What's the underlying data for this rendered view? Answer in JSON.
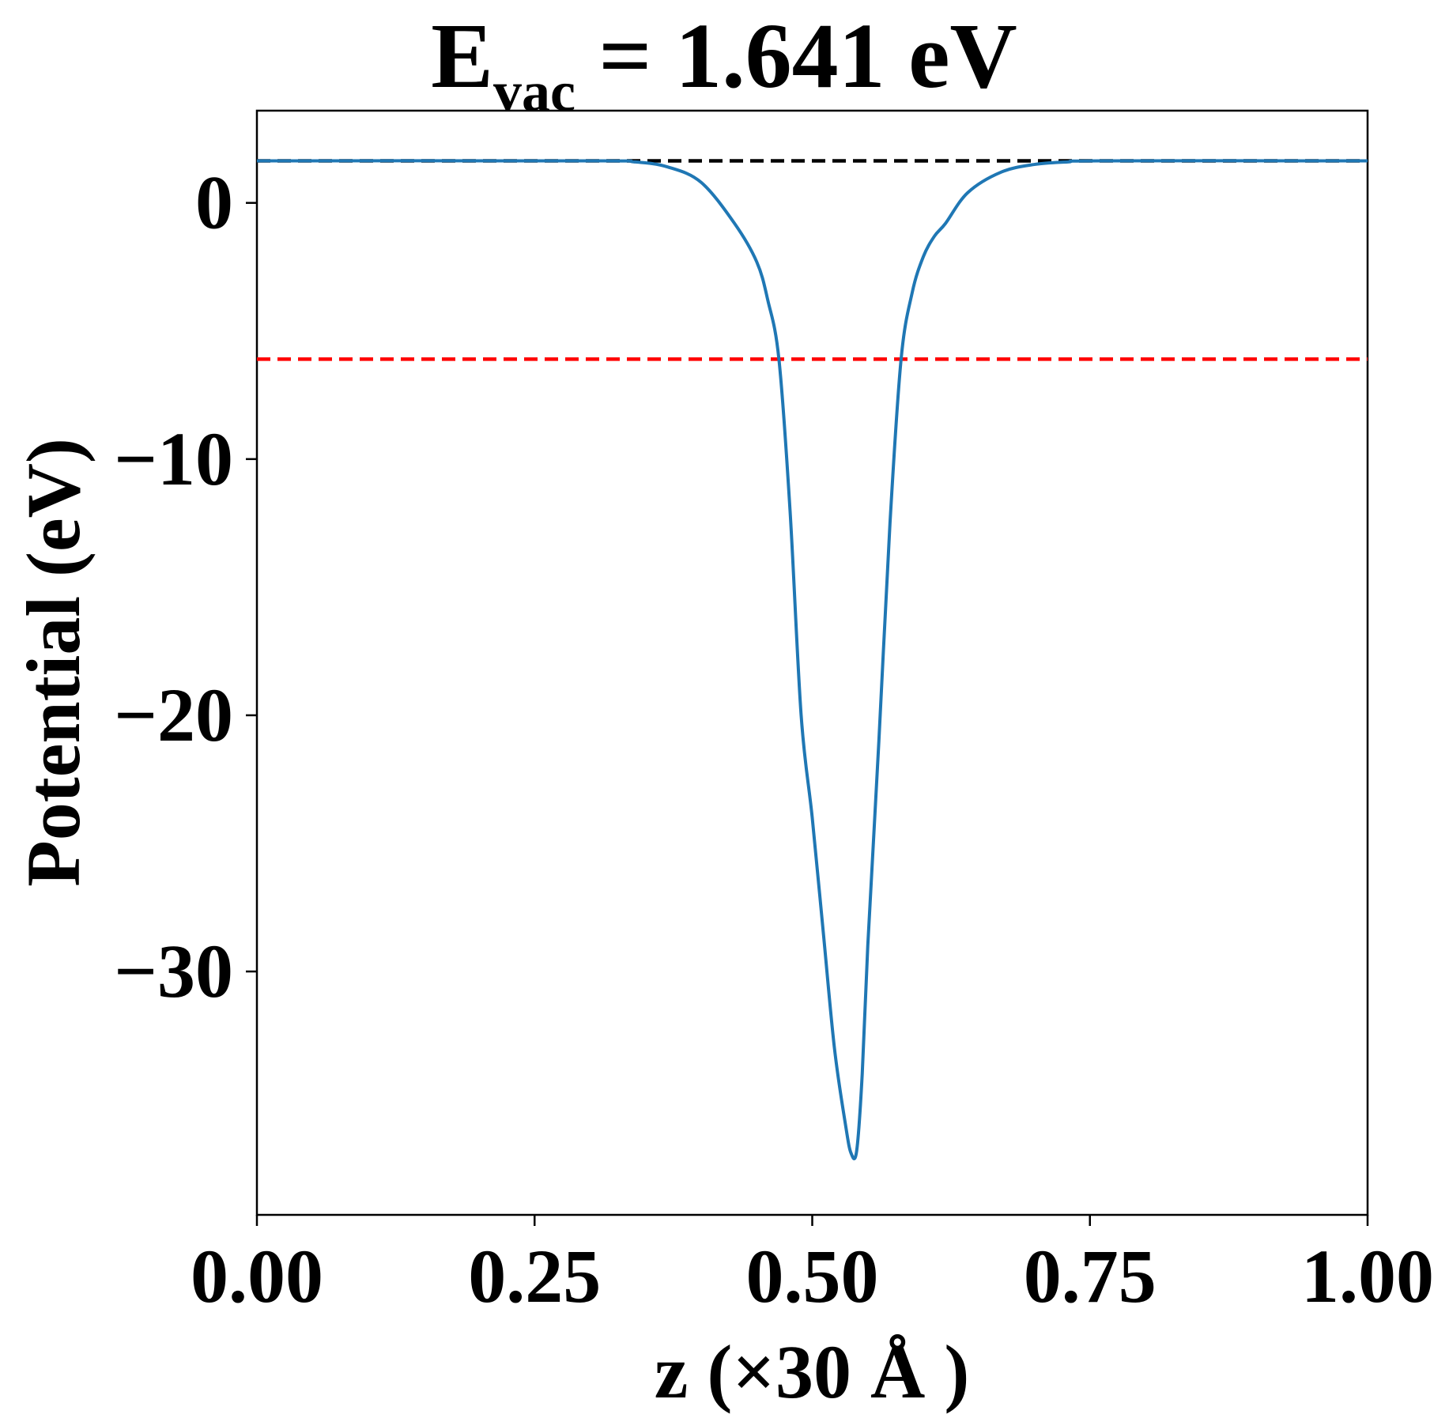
{
  "chart_data": {
    "type": "line",
    "title": {
      "main": "E",
      "subscript": "vac",
      "rest": " = 1.641 eV"
    },
    "xlabel": "z (×30 Å )",
    "ylabel": "Potential (eV)",
    "xlim": [
      0.0,
      1.0
    ],
    "ylim": [
      -39.5,
      3.6
    ],
    "xticks": [
      0.0,
      0.25,
      0.5,
      0.75,
      1.0
    ],
    "xtick_labels": [
      "0.00",
      "0.25",
      "0.50",
      "0.75",
      "1.00"
    ],
    "yticks": [
      0,
      -10,
      -20,
      -30
    ],
    "ytick_labels": [
      "0",
      "−10",
      "−20",
      "−30"
    ],
    "grid": false,
    "reference_lines": [
      {
        "y": 1.641,
        "x_range": [
          0.0,
          1.0
        ],
        "color": "#000000",
        "style": "dashed"
      },
      {
        "y": -6.1,
        "x_range": [
          0.0,
          1.0
        ],
        "color": "#ff0000",
        "style": "dashed"
      }
    ],
    "series": [
      {
        "color": "#1f77b4",
        "x": [
          0.0,
          0.3,
          0.34,
          0.37,
          0.4,
          0.43,
          0.45,
          0.46,
          0.47,
          0.48,
          0.49,
          0.5,
          0.51,
          0.52,
          0.53,
          0.535,
          0.54,
          0.545,
          0.55,
          0.56,
          0.57,
          0.58,
          0.59,
          0.6,
          0.61,
          0.62,
          0.64,
          0.67,
          0.7,
          0.73,
          0.76,
          1.0
        ],
        "y": [
          1.641,
          1.641,
          1.6,
          1.4,
          0.8,
          -0.8,
          -2.3,
          -3.8,
          -6.1,
          -12.0,
          -20.0,
          -24.0,
          -28.5,
          -33.0,
          -36.0,
          -37.1,
          -37.0,
          -34.0,
          -29.0,
          -21.0,
          -12.5,
          -6.1,
          -3.5,
          -2.1,
          -1.3,
          -0.8,
          0.4,
          1.2,
          1.5,
          1.6,
          1.641,
          1.641
        ]
      }
    ]
  }
}
